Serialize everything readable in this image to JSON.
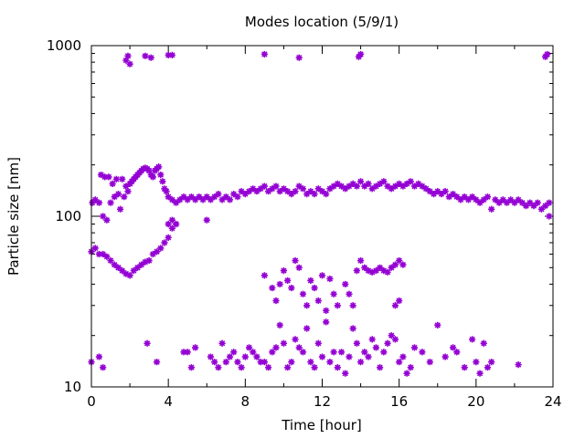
{
  "chart_data": {
    "type": "scatter",
    "title": "Modes location (5/9/1)",
    "xlabel": "Time [hour]",
    "ylabel": "Particle size [nm]",
    "xlim": [
      0,
      24
    ],
    "ylim": [
      10,
      1000
    ],
    "yscale": "log",
    "xticks": [
      0,
      4,
      8,
      12,
      16,
      20,
      24
    ],
    "yticks": [
      10,
      100,
      1000
    ],
    "grid": false,
    "legend": "none",
    "marker": "asterisk",
    "color": "#9400d3",
    "series": [
      {
        "points": [
          [
            1.8,
            820
          ],
          [
            1.9,
            870
          ],
          [
            2.0,
            780
          ],
          [
            2.8,
            870
          ],
          [
            3.1,
            850
          ],
          [
            4.0,
            880
          ],
          [
            4.2,
            880
          ],
          [
            9.0,
            890
          ],
          [
            10.8,
            850
          ],
          [
            13.9,
            860
          ],
          [
            14.0,
            890
          ],
          [
            23.6,
            860
          ],
          [
            23.7,
            890
          ],
          [
            0.05,
            120
          ],
          [
            0.2,
            125
          ],
          [
            0.4,
            120
          ],
          [
            0.5,
            175
          ],
          [
            0.6,
            100
          ],
          [
            0.7,
            170
          ],
          [
            0.8,
            95
          ],
          [
            0.9,
            170
          ],
          [
            1.0,
            120
          ],
          [
            1.1,
            155
          ],
          [
            1.2,
            130
          ],
          [
            1.3,
            165
          ],
          [
            1.4,
            135
          ],
          [
            1.5,
            110
          ],
          [
            1.6,
            165
          ],
          [
            1.7,
            130
          ],
          [
            1.8,
            150
          ],
          [
            1.9,
            140
          ],
          [
            2.0,
            155
          ],
          [
            2.1,
            160
          ],
          [
            2.2,
            165
          ],
          [
            2.3,
            170
          ],
          [
            2.4,
            175
          ],
          [
            2.5,
            180
          ],
          [
            2.6,
            185
          ],
          [
            2.7,
            190
          ],
          [
            2.8,
            192
          ],
          [
            2.9,
            190
          ],
          [
            3.0,
            185
          ],
          [
            3.1,
            175
          ],
          [
            3.2,
            170
          ],
          [
            3.3,
            185
          ],
          [
            3.4,
            190
          ],
          [
            3.5,
            195
          ],
          [
            3.6,
            175
          ],
          [
            3.7,
            160
          ],
          [
            3.8,
            145
          ],
          [
            3.9,
            140
          ],
          [
            4.0,
            130
          ],
          [
            4.2,
            125
          ],
          [
            4.4,
            120
          ],
          [
            4.6,
            125
          ],
          [
            4.8,
            130
          ],
          [
            5.0,
            125
          ],
          [
            5.2,
            130
          ],
          [
            5.4,
            125
          ],
          [
            5.6,
            130
          ],
          [
            5.8,
            125
          ],
          [
            6.0,
            130
          ],
          [
            6.2,
            125
          ],
          [
            6.4,
            130
          ],
          [
            6.6,
            135
          ],
          [
            6.8,
            125
          ],
          [
            7.0,
            130
          ],
          [
            7.2,
            125
          ],
          [
            7.4,
            135
          ],
          [
            7.6,
            130
          ],
          [
            7.8,
            140
          ],
          [
            8.0,
            135
          ],
          [
            8.2,
            140
          ],
          [
            8.4,
            145
          ],
          [
            8.6,
            140
          ],
          [
            8.8,
            145
          ],
          [
            9.0,
            150
          ],
          [
            9.2,
            140
          ],
          [
            9.4,
            145
          ],
          [
            9.6,
            150
          ],
          [
            9.8,
            140
          ],
          [
            10.0,
            145
          ],
          [
            10.2,
            140
          ],
          [
            10.4,
            135
          ],
          [
            10.6,
            140
          ],
          [
            10.8,
            150
          ],
          [
            11.0,
            145
          ],
          [
            11.2,
            135
          ],
          [
            11.4,
            140
          ],
          [
            11.6,
            135
          ],
          [
            11.8,
            145
          ],
          [
            12.0,
            140
          ],
          [
            12.2,
            135
          ],
          [
            12.4,
            145
          ],
          [
            12.6,
            150
          ],
          [
            12.8,
            155
          ],
          [
            13.0,
            150
          ],
          [
            13.2,
            145
          ],
          [
            13.4,
            150
          ],
          [
            13.6,
            155
          ],
          [
            13.8,
            150
          ],
          [
            14.0,
            160
          ],
          [
            14.2,
            150
          ],
          [
            14.4,
            155
          ],
          [
            14.6,
            145
          ],
          [
            14.8,
            150
          ],
          [
            15.0,
            155
          ],
          [
            15.2,
            160
          ],
          [
            15.4,
            150
          ],
          [
            15.6,
            145
          ],
          [
            15.8,
            150
          ],
          [
            16.0,
            155
          ],
          [
            16.2,
            150
          ],
          [
            16.4,
            155
          ],
          [
            16.6,
            160
          ],
          [
            16.8,
            150
          ],
          [
            17.0,
            155
          ],
          [
            17.2,
            150
          ],
          [
            17.4,
            145
          ],
          [
            17.6,
            140
          ],
          [
            17.8,
            135
          ],
          [
            18.0,
            140
          ],
          [
            18.2,
            135
          ],
          [
            18.4,
            140
          ],
          [
            18.6,
            130
          ],
          [
            18.8,
            135
          ],
          [
            19.0,
            130
          ],
          [
            19.2,
            125
          ],
          [
            19.4,
            130
          ],
          [
            19.6,
            125
          ],
          [
            19.8,
            130
          ],
          [
            20.0,
            125
          ],
          [
            20.2,
            120
          ],
          [
            20.4,
            125
          ],
          [
            20.6,
            130
          ],
          [
            20.8,
            110
          ],
          [
            21.0,
            125
          ],
          [
            21.2,
            120
          ],
          [
            21.4,
            125
          ],
          [
            21.6,
            120
          ],
          [
            21.8,
            125
          ],
          [
            22.0,
            120
          ],
          [
            22.2,
            125
          ],
          [
            22.4,
            120
          ],
          [
            22.6,
            115
          ],
          [
            22.8,
            120
          ],
          [
            23.0,
            115
          ],
          [
            23.2,
            120
          ],
          [
            23.4,
            110
          ],
          [
            23.6,
            115
          ],
          [
            23.8,
            120
          ],
          [
            4.0,
            90
          ],
          [
            4.2,
            95
          ],
          [
            4.4,
            90
          ],
          [
            6.0,
            95
          ],
          [
            23.8,
            100
          ],
          [
            0.0,
            62
          ],
          [
            0.2,
            65
          ],
          [
            0.4,
            60
          ],
          [
            0.6,
            60
          ],
          [
            0.8,
            58
          ],
          [
            1.0,
            55
          ],
          [
            1.2,
            52
          ],
          [
            1.4,
            50
          ],
          [
            1.6,
            48
          ],
          [
            1.8,
            46
          ],
          [
            2.0,
            45
          ],
          [
            2.2,
            48
          ],
          [
            2.4,
            50
          ],
          [
            2.6,
            52
          ],
          [
            2.8,
            54
          ],
          [
            3.0,
            55
          ],
          [
            3.2,
            60
          ],
          [
            3.4,
            62
          ],
          [
            3.6,
            65
          ],
          [
            3.8,
            70
          ],
          [
            4.0,
            75
          ],
          [
            4.2,
            85
          ],
          [
            4.4,
            90
          ],
          [
            9.0,
            45
          ],
          [
            9.4,
            38
          ],
          [
            9.6,
            32
          ],
          [
            9.8,
            40
          ],
          [
            10.0,
            48
          ],
          [
            10.2,
            42
          ],
          [
            10.4,
            38
          ],
          [
            10.6,
            55
          ],
          [
            10.8,
            50
          ],
          [
            11.0,
            35
          ],
          [
            11.2,
            30
          ],
          [
            11.4,
            42
          ],
          [
            11.6,
            38
          ],
          [
            11.8,
            32
          ],
          [
            12.0,
            45
          ],
          [
            12.2,
            28
          ],
          [
            12.4,
            43
          ],
          [
            12.6,
            35
          ],
          [
            12.8,
            30
          ],
          [
            13.2,
            40
          ],
          [
            13.4,
            35
          ],
          [
            13.6,
            30
          ],
          [
            13.8,
            48
          ],
          [
            14.0,
            55
          ],
          [
            14.2,
            50
          ],
          [
            14.4,
            48
          ],
          [
            14.6,
            47
          ],
          [
            14.8,
            48
          ],
          [
            15.0,
            50
          ],
          [
            15.2,
            48
          ],
          [
            15.4,
            47
          ],
          [
            15.6,
            50
          ],
          [
            15.8,
            52
          ],
          [
            16.0,
            55
          ],
          [
            16.2,
            52
          ],
          [
            15.8,
            30
          ],
          [
            16.0,
            32
          ],
          [
            0.0,
            14
          ],
          [
            0.4,
            15
          ],
          [
            0.6,
            13
          ],
          [
            2.9,
            18
          ],
          [
            3.4,
            14
          ],
          [
            4.8,
            16
          ],
          [
            5.0,
            16
          ],
          [
            5.2,
            13
          ],
          [
            5.4,
            17
          ],
          [
            6.2,
            15
          ],
          [
            6.4,
            14
          ],
          [
            6.6,
            13
          ],
          [
            6.8,
            18
          ],
          [
            7.0,
            14
          ],
          [
            7.2,
            15
          ],
          [
            7.4,
            16
          ],
          [
            7.6,
            14
          ],
          [
            7.8,
            13
          ],
          [
            8.0,
            15
          ],
          [
            8.2,
            17
          ],
          [
            8.4,
            16
          ],
          [
            8.6,
            15
          ],
          [
            8.8,
            14
          ],
          [
            9.0,
            14
          ],
          [
            9.2,
            13
          ],
          [
            9.4,
            16
          ],
          [
            9.6,
            17
          ],
          [
            9.8,
            23
          ],
          [
            10.0,
            18
          ],
          [
            10.2,
            13
          ],
          [
            10.4,
            14
          ],
          [
            10.6,
            19
          ],
          [
            10.8,
            17
          ],
          [
            11.0,
            16
          ],
          [
            11.2,
            22
          ],
          [
            11.4,
            14
          ],
          [
            11.6,
            13
          ],
          [
            11.8,
            18
          ],
          [
            12.0,
            15
          ],
          [
            12.2,
            24
          ],
          [
            12.4,
            14
          ],
          [
            12.6,
            16
          ],
          [
            12.8,
            13
          ],
          [
            13.0,
            16
          ],
          [
            13.2,
            12
          ],
          [
            13.4,
            15
          ],
          [
            13.6,
            22
          ],
          [
            13.8,
            18
          ],
          [
            14.0,
            14
          ],
          [
            14.2,
            16
          ],
          [
            14.4,
            15
          ],
          [
            14.6,
            19
          ],
          [
            14.8,
            17
          ],
          [
            15.0,
            13
          ],
          [
            15.2,
            16
          ],
          [
            15.4,
            18
          ],
          [
            15.6,
            20
          ],
          [
            15.8,
            19
          ],
          [
            16.0,
            14
          ],
          [
            16.2,
            15
          ],
          [
            16.4,
            12
          ],
          [
            16.6,
            13
          ],
          [
            16.8,
            17
          ],
          [
            17.2,
            16
          ],
          [
            17.6,
            14
          ],
          [
            18.0,
            23
          ],
          [
            18.4,
            15
          ],
          [
            18.8,
            17
          ],
          [
            19.0,
            16
          ],
          [
            19.4,
            13
          ],
          [
            19.8,
            19
          ],
          [
            20.0,
            14
          ],
          [
            20.2,
            12
          ],
          [
            20.4,
            18
          ],
          [
            20.6,
            13
          ],
          [
            20.8,
            14
          ],
          [
            22.2,
            13.5
          ]
        ]
      }
    ]
  }
}
